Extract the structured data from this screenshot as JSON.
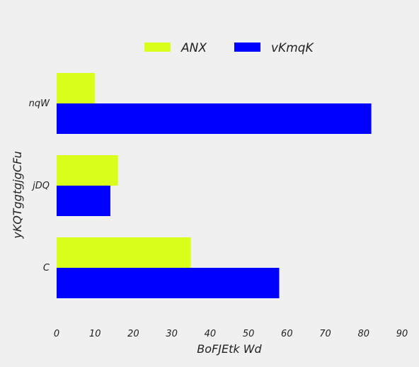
{
  "chart_data": {
    "type": "bar",
    "orientation": "horizontal",
    "categories": [
      "C",
      "jDQ",
      "nqW"
    ],
    "series": [
      {
        "name": "ANX",
        "values": [
          35,
          16,
          10
        ],
        "color": "#d9ff1a"
      },
      {
        "name": "vKmqK",
        "values": [
          58,
          14,
          82
        ],
        "color": "#0000ff"
      }
    ],
    "xlabel": "BoFJEtk Wd",
    "ylabel": "yKQTggtgjgCFu",
    "xlim": [
      0,
      90
    ],
    "xticks": [
      "0",
      "10",
      "20",
      "30",
      "40",
      "50",
      "60",
      "70",
      "80",
      "90"
    ],
    "grid": false,
    "legend_position": "top-center"
  }
}
